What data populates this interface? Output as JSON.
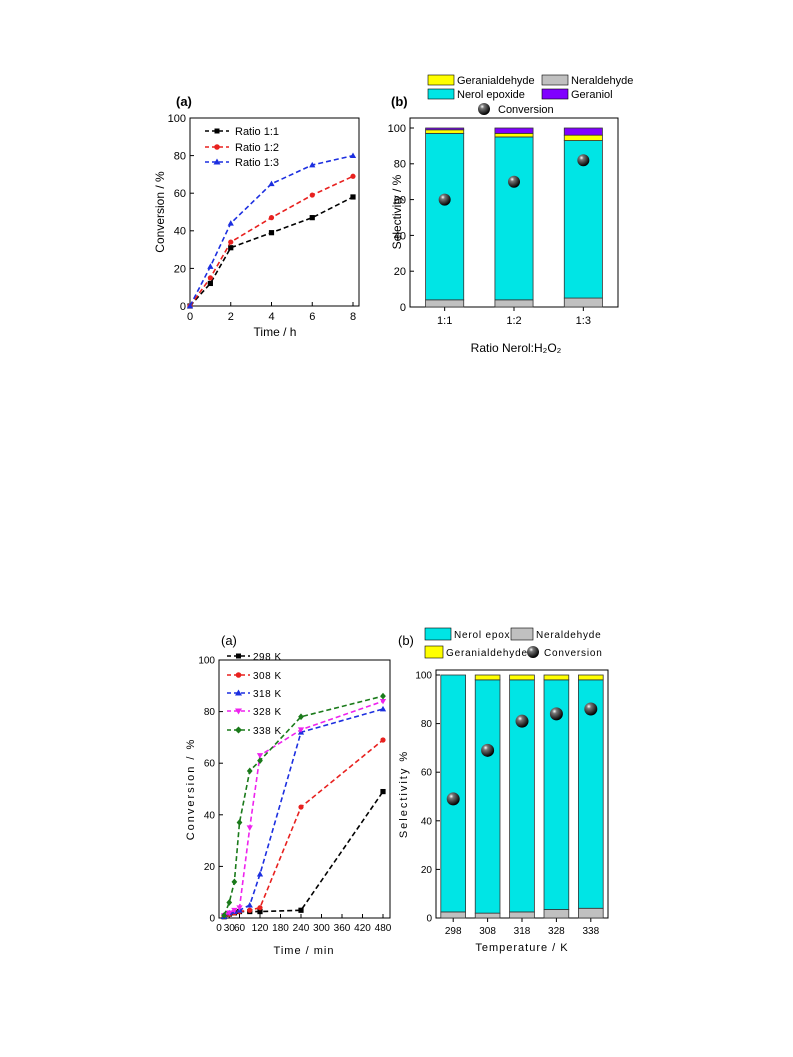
{
  "chart_data": [
    {
      "panel": "(a)",
      "type": "line",
      "xlabel": "Time / h",
      "ylabel": "Conversion / %",
      "xlim": [
        0,
        8
      ],
      "ylim": [
        0,
        100
      ],
      "xticks": [
        0,
        2,
        4,
        6,
        8
      ],
      "yticks": [
        0,
        20,
        40,
        60,
        80,
        100
      ],
      "legend_position": "top-left",
      "series": [
        {
          "name": "Ratio 1:1",
          "color": "#000000",
          "marker": "square",
          "x": [
            0,
            1,
            2,
            4,
            6,
            8
          ],
          "y": [
            0,
            12,
            31,
            39,
            47,
            58
          ]
        },
        {
          "name": "Ratio 1:2",
          "color": "#e8211f",
          "marker": "circle",
          "x": [
            0,
            1,
            2,
            4,
            6,
            8
          ],
          "y": [
            0,
            15,
            34,
            47,
            59,
            69
          ]
        },
        {
          "name": "Ratio 1:3",
          "color": "#1c2fe0",
          "marker": "triangle",
          "x": [
            0,
            1,
            2,
            4,
            6,
            8
          ],
          "y": [
            0,
            21,
            44,
            65,
            75,
            80
          ]
        }
      ]
    },
    {
      "panel": "(b)",
      "type": "bar",
      "stacked": true,
      "xlabel": "Ratio Nerol:H₂O₂",
      "ylabel": "Selectivity / %",
      "ylim": [
        0,
        100
      ],
      "yticks": [
        0,
        20,
        40,
        60,
        80,
        100
      ],
      "categories": [
        "1:1",
        "1:2",
        "1:3"
      ],
      "legend_position": "top",
      "series": [
        {
          "name": "Neraldehyde",
          "color": "#c0c0c0",
          "values": [
            4,
            4,
            5
          ]
        },
        {
          "name": "Nerol epoxide",
          "color": "#00e5e5",
          "values": [
            93,
            91,
            88
          ]
        },
        {
          "name": "Geranialdehyde",
          "color": "#ffff00",
          "values": [
            2,
            2,
            3
          ]
        },
        {
          "name": "Geraniol",
          "color": "#8000ff",
          "values": [
            1,
            3,
            4
          ]
        }
      ],
      "conversion": {
        "name": "Conversion",
        "values": [
          60,
          70,
          82
        ]
      }
    },
    {
      "panel": "(a)",
      "type": "line",
      "xlabel": "Time / min",
      "ylabel": "Conversion / %",
      "xlim": [
        0,
        480
      ],
      "ylim": [
        0,
        100
      ],
      "xticks": [
        0,
        60,
        120,
        180,
        240,
        300,
        360,
        420,
        480
      ],
      "xticks_minor": [
        30
      ],
      "yticks": [
        0,
        20,
        40,
        60,
        80,
        100
      ],
      "legend_position": "top-left",
      "series": [
        {
          "name": "298 K",
          "color": "#000000",
          "marker": "square",
          "x": [
            15,
            30,
            45,
            60,
            90,
            120,
            240,
            480
          ],
          "y": [
            0.5,
            1.5,
            2,
            2.5,
            2.5,
            2.5,
            3,
            49
          ]
        },
        {
          "name": "308 K",
          "color": "#e8211f",
          "marker": "circle",
          "x": [
            15,
            30,
            45,
            60,
            90,
            120,
            240,
            480
          ],
          "y": [
            0.5,
            1.5,
            2,
            2.5,
            3,
            4,
            43,
            69
          ]
        },
        {
          "name": "318 K",
          "color": "#1c2fe0",
          "marker": "triangle",
          "x": [
            15,
            30,
            45,
            60,
            90,
            120,
            240,
            480
          ],
          "y": [
            0.5,
            2,
            2.5,
            3,
            5,
            17,
            72,
            81
          ]
        },
        {
          "name": "328 K",
          "color": "#ee22ee",
          "marker": "triangle-down",
          "x": [
            15,
            30,
            45,
            60,
            90,
            120,
            240,
            480
          ],
          "y": [
            1,
            2,
            3,
            4,
            35,
            63,
            73,
            84
          ]
        },
        {
          "name": "338 K",
          "color": "#1a7a1a",
          "marker": "diamond",
          "x": [
            15,
            30,
            45,
            60,
            90,
            120,
            240,
            480
          ],
          "y": [
            1,
            6,
            14,
            37,
            57,
            61,
            78,
            86
          ]
        }
      ]
    },
    {
      "panel": "(b)",
      "type": "bar",
      "stacked": true,
      "xlabel": "Temperature / K",
      "ylabel": "Selectivity %",
      "ylim": [
        0,
        100
      ],
      "yticks": [
        0,
        20,
        40,
        60,
        80,
        100
      ],
      "categories": [
        "298",
        "308",
        "318",
        "328",
        "338"
      ],
      "legend_position": "top",
      "series": [
        {
          "name": "Neraldehyde",
          "color": "#c0c0c0",
          "values": [
            2.5,
            2,
            2.5,
            3.5,
            4
          ]
        },
        {
          "name": "Nerol epoxide",
          "color": "#00e5e5",
          "values": [
            97.5,
            96,
            95.5,
            94.5,
            94
          ]
        },
        {
          "name": "Geranialdehyde",
          "color": "#ffff00",
          "values": [
            0,
            2,
            2,
            2,
            2
          ]
        }
      ],
      "conversion": {
        "name": "Conversion",
        "values": [
          49,
          69,
          81,
          84,
          86
        ]
      }
    }
  ]
}
